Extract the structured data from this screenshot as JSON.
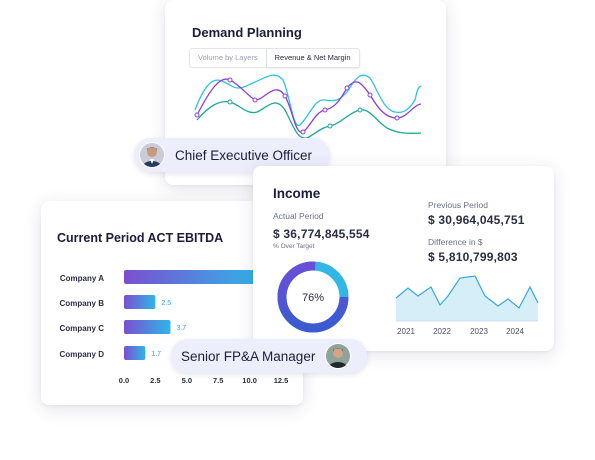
{
  "demand": {
    "title": "Demand Planning",
    "tabs": [
      "Volume by Layers",
      "Revenue & Net Margin"
    ],
    "colors": {
      "cyan": "#2ec4e0",
      "purple": "#8a3fd9",
      "teal": "#1aa79a"
    }
  },
  "pills": {
    "ceo": "Chief Executive Officer",
    "fpa": "Senior FP&A Manager"
  },
  "ebitda": {
    "title": "Current Period ACT EBITDA",
    "chart_data": {
      "type": "bar",
      "categories": [
        "Company A",
        "Company B",
        "Company C",
        "Company D"
      ],
      "values": [
        11.0,
        2.5,
        3.7,
        1.7
      ],
      "value_labels": [
        "",
        "2.5",
        "3.7",
        "1.7"
      ],
      "xlim": [
        0,
        12.5
      ],
      "xticks": [
        "0.0",
        "2.5",
        "5.0",
        "7.5",
        "10.0",
        "12.5"
      ],
      "title": "Current Period ACT EBITDA"
    }
  },
  "income": {
    "title": "Income",
    "actual_label": "Actual Period",
    "actual_value": "$ 36,774,845,554",
    "over_target": "% Over Target",
    "donut_label": "76%",
    "donut_value": 76,
    "previous_label": "Previous Period",
    "previous_value": "$ 30,964,045,751",
    "difference_label": "Difference in $",
    "difference_value": "$ 5,810,799,803",
    "years": [
      "2021",
      "2022",
      "2023",
      "2024"
    ]
  }
}
